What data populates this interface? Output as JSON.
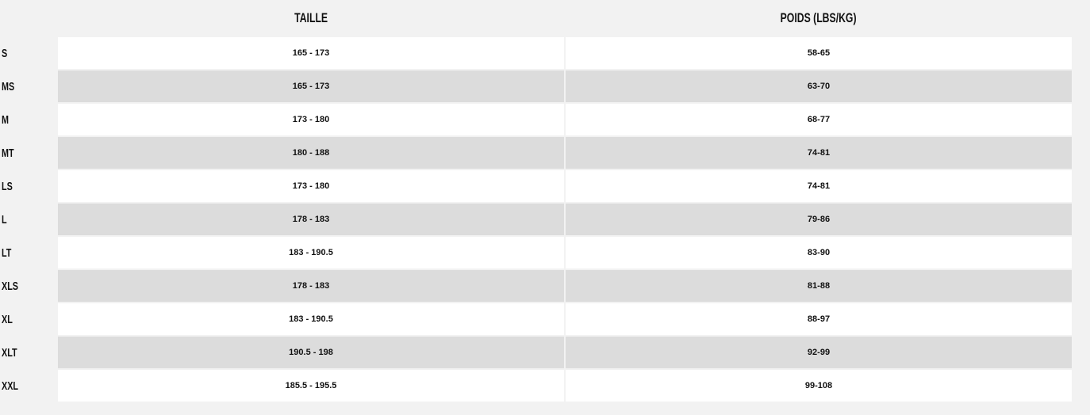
{
  "table": {
    "headers": [
      "",
      "TAILLE",
      "POIDS (LBS/KG)"
    ],
    "rows": [
      {
        "size": "S",
        "taille": "165 - 173",
        "poids": "58-65"
      },
      {
        "size": "MS",
        "taille": "165 - 173",
        "poids": "63-70"
      },
      {
        "size": "M",
        "taille": "173 - 180",
        "poids": "68-77"
      },
      {
        "size": "MT",
        "taille": "180 - 188",
        "poids": "74-81"
      },
      {
        "size": "LS",
        "taille": "173 - 180",
        "poids": "74-81"
      },
      {
        "size": "L",
        "taille": "178 - 183",
        "poids": "79-86"
      },
      {
        "size": "LT",
        "taille": "183 - 190.5",
        "poids": "83-90"
      },
      {
        "size": "XLS",
        "taille": "178 - 183",
        "poids": "81-88"
      },
      {
        "size": "XL",
        "taille": "183 - 190.5",
        "poids": "88-97"
      },
      {
        "size": "XLT",
        "taille": "190.5 - 198",
        "poids": "92-99"
      },
      {
        "size": "XXL",
        "taille": "185.5 - 195.5",
        "poids": "99-108"
      }
    ]
  },
  "colors": {
    "background": "#f2f2f2",
    "row_white": "#ffffff",
    "row_grey": "#dcdcdc"
  }
}
